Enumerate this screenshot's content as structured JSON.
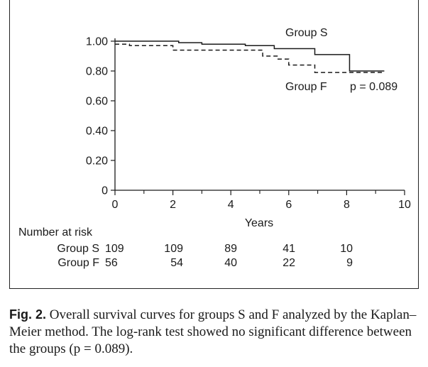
{
  "chart_data": {
    "type": "line",
    "subtype": "kaplan-meier",
    "x_label": "Years",
    "xlim": [
      0,
      10
    ],
    "x_ticks": [
      "0",
      "2",
      "4",
      "6",
      "8",
      "10"
    ],
    "ylim": [
      0,
      1
    ],
    "y_ticks": [
      "0",
      "0.20",
      "0.40",
      "0.60",
      "0.80",
      "1.00"
    ],
    "grid": false,
    "series": [
      {
        "name": "Group S",
        "line_style": "solid",
        "steps": [
          [
            0,
            1.0
          ],
          [
            2.2,
            0.99
          ],
          [
            3.0,
            0.98
          ],
          [
            4.5,
            0.97
          ],
          [
            5.5,
            0.95
          ],
          [
            6.9,
            0.91
          ],
          [
            8.1,
            0.8
          ],
          [
            9.3,
            0.8
          ]
        ]
      },
      {
        "name": "Group F",
        "line_style": "dashed",
        "steps": [
          [
            0,
            0.98
          ],
          [
            0.5,
            0.97
          ],
          [
            2.0,
            0.94
          ],
          [
            5.1,
            0.9
          ],
          [
            5.6,
            0.88
          ],
          [
            6.0,
            0.84
          ],
          [
            6.9,
            0.79
          ],
          [
            9.3,
            0.79
          ]
        ]
      }
    ],
    "annotations": {
      "group_s_label": "Group S",
      "group_f_label": "Group F",
      "p_value": "p = 0.089"
    },
    "risk_table": {
      "title": "Number at risk",
      "rows": [
        {
          "label": "Group S",
          "values": [
            "109",
            "109",
            "89",
            "41",
            "10"
          ]
        },
        {
          "label": "Group F",
          "values": [
            "56",
            "54",
            "40",
            "22",
            "9"
          ]
        }
      ]
    }
  },
  "caption": {
    "label": "Fig. 2.",
    "text": " Overall survival curves for groups S and F analyzed by the Kaplan–Meier method. The log-rank test showed no significant difference between the groups (p = 0.089)."
  },
  "colors": {
    "ink": "#1a1a1a",
    "background": "#ffffff"
  }
}
